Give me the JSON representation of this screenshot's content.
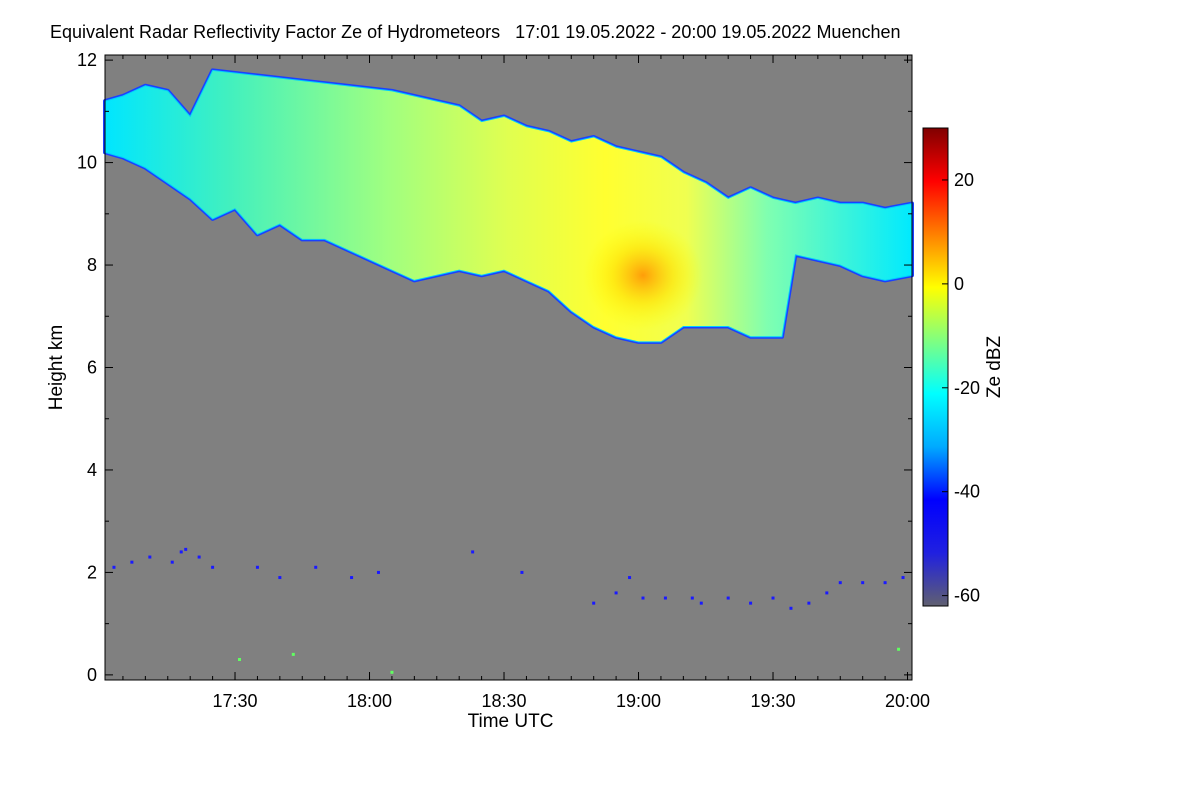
{
  "chart_data": {
    "type": "heatmap",
    "title": "Equivalent Radar Reflectivity Factor Ze of Hydrometeors   17:01 19.05.2022 - 20:00 19.05.2022 Muenchen",
    "xlabel": "Time UTC",
    "ylabel": "Height km",
    "x_range_minutes": [
      1021,
      1201
    ],
    "xticks": [
      {
        "label": "17:30",
        "minute": 1050
      },
      {
        "label": "18:00",
        "minute": 1080
      },
      {
        "label": "18:30",
        "minute": 1110
      },
      {
        "label": "19:00",
        "minute": 1140
      },
      {
        "label": "19:30",
        "minute": 1170
      },
      {
        "label": "20:00",
        "minute": 1200
      }
    ],
    "ylim": [
      -0.1,
      12.1
    ],
    "yticks": [
      0,
      2,
      4,
      6,
      8,
      10,
      12
    ],
    "colorbar": {
      "label": "Ze dBZ",
      "range": [
        -62,
        30
      ],
      "ticks": [
        20,
        0,
        -20,
        -40,
        -60
      ],
      "colors": [
        "#606070",
        "#2020e0",
        "#0000ff",
        "#00aaff",
        "#00ffff",
        "#80ff80",
        "#ffff00",
        "#ff8000",
        "#ff0000",
        "#800000"
      ]
    },
    "background_color": "#808080",
    "cloud": {
      "description_series": "upper cloud layer, base and top height (km) vs time (min)",
      "top": [
        [
          1021,
          11.2
        ],
        [
          1025,
          11.3
        ],
        [
          1030,
          11.5
        ],
        [
          1035,
          11.4
        ],
        [
          1040,
          10.9
        ],
        [
          1045,
          11.8
        ],
        [
          1055,
          11.7
        ],
        [
          1065,
          11.6
        ],
        [
          1075,
          11.5
        ],
        [
          1085,
          11.4
        ],
        [
          1095,
          11.2
        ],
        [
          1100,
          11.1
        ],
        [
          1105,
          10.8
        ],
        [
          1110,
          10.9
        ],
        [
          1115,
          10.7
        ],
        [
          1120,
          10.6
        ],
        [
          1125,
          10.4
        ],
        [
          1130,
          10.5
        ],
        [
          1135,
          10.3
        ],
        [
          1140,
          10.2
        ],
        [
          1145,
          10.1
        ],
        [
          1150,
          9.8
        ],
        [
          1155,
          9.6
        ],
        [
          1160,
          9.3
        ],
        [
          1165,
          9.5
        ],
        [
          1170,
          9.3
        ],
        [
          1175,
          9.2
        ],
        [
          1180,
          9.3
        ],
        [
          1185,
          9.2
        ],
        [
          1190,
          9.2
        ],
        [
          1195,
          9.1
        ],
        [
          1201,
          9.2
        ]
      ],
      "base": [
        [
          1021,
          10.2
        ],
        [
          1025,
          10.1
        ],
        [
          1030,
          9.9
        ],
        [
          1035,
          9.6
        ],
        [
          1040,
          9.3
        ],
        [
          1045,
          8.9
        ],
        [
          1050,
          9.1
        ],
        [
          1055,
          8.6
        ],
        [
          1060,
          8.8
        ],
        [
          1065,
          8.5
        ],
        [
          1070,
          8.5
        ],
        [
          1075,
          8.3
        ],
        [
          1080,
          8.1
        ],
        [
          1085,
          7.9
        ],
        [
          1090,
          7.7
        ],
        [
          1095,
          7.8
        ],
        [
          1100,
          7.9
        ],
        [
          1105,
          7.8
        ],
        [
          1110,
          7.9
        ],
        [
          1115,
          7.7
        ],
        [
          1120,
          7.5
        ],
        [
          1125,
          7.1
        ],
        [
          1130,
          6.8
        ],
        [
          1135,
          6.6
        ],
        [
          1140,
          6.5
        ],
        [
          1145,
          6.5
        ],
        [
          1150,
          6.8
        ],
        [
          1155,
          6.8
        ],
        [
          1160,
          6.8
        ],
        [
          1165,
          6.6
        ],
        [
          1168,
          6.6
        ],
        [
          1172,
          6.6
        ],
        [
          1175,
          8.2
        ],
        [
          1180,
          8.1
        ],
        [
          1185,
          8.0
        ],
        [
          1190,
          7.8
        ],
        [
          1195,
          7.7
        ],
        [
          1201,
          7.8
        ]
      ],
      "core_max_dbz_location": {
        "minute": 1141,
        "height_km": 7.8
      }
    },
    "noise_points": [
      {
        "minute": 1023,
        "height_km": 2.1
      },
      {
        "minute": 1027,
        "height_km": 2.2
      },
      {
        "minute": 1031,
        "height_km": 2.3
      },
      {
        "minute": 1036,
        "height_km": 2.2
      },
      {
        "minute": 1038,
        "height_km": 2.4
      },
      {
        "minute": 1039,
        "height_km": 2.45
      },
      {
        "minute": 1042,
        "height_km": 2.3
      },
      {
        "minute": 1045,
        "height_km": 2.1
      },
      {
        "minute": 1055,
        "height_km": 2.1
      },
      {
        "minute": 1060,
        "height_km": 1.9
      },
      {
        "minute": 1068,
        "height_km": 2.1
      },
      {
        "minute": 1076,
        "height_km": 1.9
      },
      {
        "minute": 1082,
        "height_km": 2.0
      },
      {
        "minute": 1103,
        "height_km": 2.4
      },
      {
        "minute": 1114,
        "height_km": 2.0
      },
      {
        "minute": 1130,
        "height_km": 1.4
      },
      {
        "minute": 1135,
        "height_km": 1.6
      },
      {
        "minute": 1138,
        "height_km": 1.9
      },
      {
        "minute": 1141,
        "height_km": 1.5
      },
      {
        "minute": 1146,
        "height_km": 1.5
      },
      {
        "minute": 1152,
        "height_km": 1.5
      },
      {
        "minute": 1154,
        "height_km": 1.4
      },
      {
        "minute": 1160,
        "height_km": 1.5
      },
      {
        "minute": 1165,
        "height_km": 1.4
      },
      {
        "minute": 1170,
        "height_km": 1.5
      },
      {
        "minute": 1174,
        "height_km": 1.3
      },
      {
        "minute": 1178,
        "height_km": 1.4
      },
      {
        "minute": 1182,
        "height_km": 1.6
      },
      {
        "minute": 1185,
        "height_km": 1.8
      },
      {
        "minute": 1190,
        "height_km": 1.8
      },
      {
        "minute": 1195,
        "height_km": 1.8
      },
      {
        "minute": 1199,
        "height_km": 1.9
      },
      {
        "minute": 1051,
        "height_km": 0.3
      },
      {
        "minute": 1085,
        "height_km": 0.05
      },
      {
        "minute": 1063,
        "height_km": 0.4
      },
      {
        "minute": 1198,
        "height_km": 0.5
      }
    ]
  }
}
